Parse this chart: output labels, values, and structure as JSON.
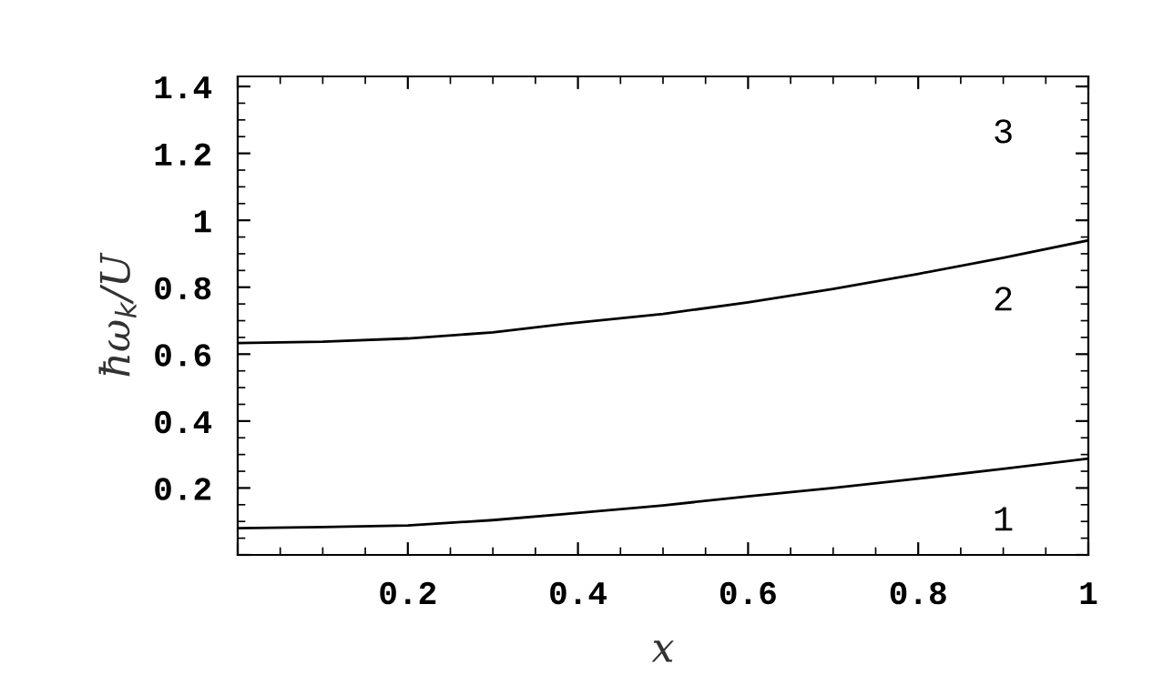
{
  "chart_data": {
    "type": "line",
    "xlabel": "x",
    "ylabel": "ħω$_{k}$/U",
    "x": [
      0,
      0.1,
      0.2,
      0.3,
      0.384,
      0.5,
      0.6,
      0.7,
      0.8,
      0.9,
      1
    ],
    "series": [
      {
        "color": "#000000",
        "values": [
          0.08,
          0.083,
          0.088,
          0.104,
          0.122,
          0.148,
          0.175,
          0.2,
          0.228,
          0.257,
          0.288
        ]
      },
      {
        "color": "#000000",
        "values": [
          0.633,
          0.637,
          0.647,
          0.665,
          0.69,
          0.72,
          0.755,
          0.795,
          0.84,
          0.888,
          0.94
        ]
      }
    ],
    "annotations": [
      "1",
      "2",
      "3"
    ],
    "xlim": [
      0,
      1
    ],
    "ylim": [
      0,
      1.43
    ],
    "xticks": [
      {
        "value": 0,
        "label": null
      },
      0.2,
      0.4,
      0.6,
      0.8,
      1
    ],
    "yticks": [
      {
        "value": 0,
        "label": null
      },
      0.2,
      0.4,
      0.6,
      0.8,
      1,
      1.2,
      1.4
    ],
    "grid": false,
    "legend": false,
    "marker": "none",
    "line_style": "solid"
  }
}
